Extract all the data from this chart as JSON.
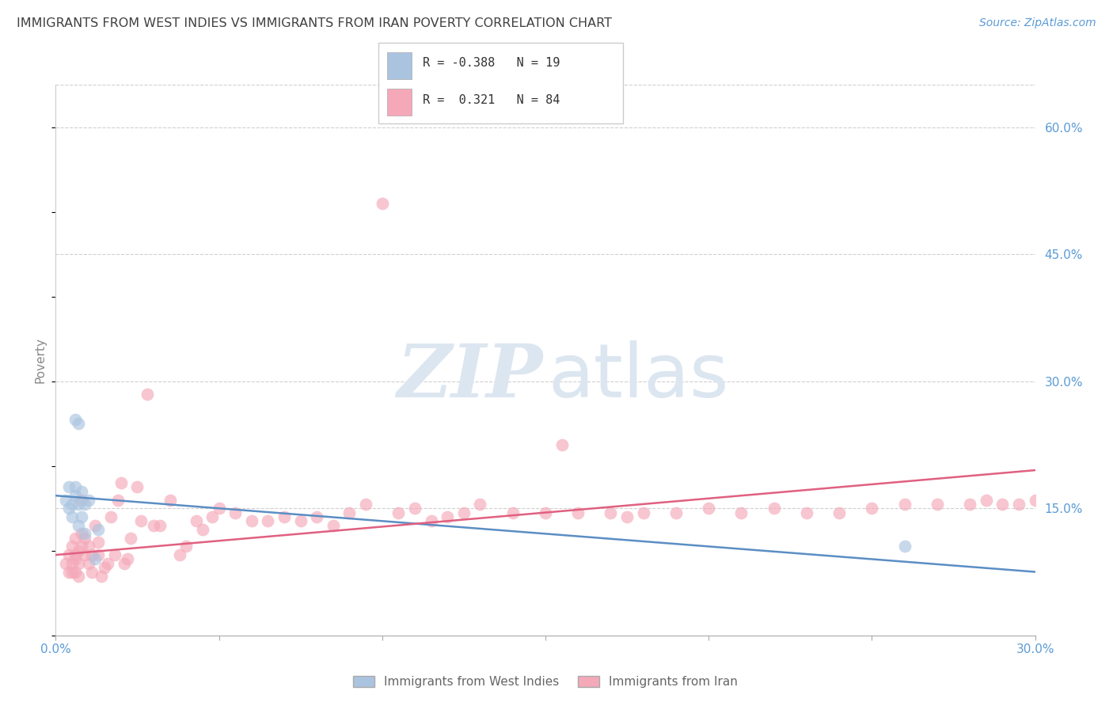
{
  "title": "IMMIGRANTS FROM WEST INDIES VS IMMIGRANTS FROM IRAN POVERTY CORRELATION CHART",
  "source": "Source: ZipAtlas.com",
  "ylabel": "Poverty",
  "xlim": [
    0.0,
    0.3
  ],
  "ylim": [
    0.0,
    0.65
  ],
  "x_ticks": [
    0.0,
    0.05,
    0.1,
    0.15,
    0.2,
    0.25,
    0.3
  ],
  "x_tick_labels": [
    "0.0%",
    "",
    "",
    "",
    "",
    "",
    "30.0%"
  ],
  "y_ticks_right": [
    0.15,
    0.3,
    0.45,
    0.6
  ],
  "y_tick_labels_right": [
    "15.0%",
    "30.0%",
    "45.0%",
    "60.0%"
  ],
  "grid_color": "#d0d0d0",
  "background_color": "#ffffff",
  "blue_color": "#aac4e0",
  "pink_color": "#f4a8b8",
  "blue_line_color": "#5b8ec4",
  "pink_line_color": "#e06080",
  "right_axis_color": "#5b9bd5",
  "title_color": "#404040",
  "ylabel_color": "#888888",
  "legend_R1": "-0.388",
  "legend_N1": "19",
  "legend_R2": "0.321",
  "legend_N2": "84",
  "west_indies_x": [
    0.003,
    0.004,
    0.004,
    0.005,
    0.005,
    0.006,
    0.006,
    0.006,
    0.007,
    0.007,
    0.007,
    0.008,
    0.008,
    0.009,
    0.009,
    0.01,
    0.012,
    0.013,
    0.26
  ],
  "west_indies_y": [
    0.16,
    0.15,
    0.175,
    0.155,
    0.14,
    0.165,
    0.175,
    0.255,
    0.25,
    0.13,
    0.155,
    0.17,
    0.14,
    0.155,
    0.12,
    0.16,
    0.09,
    0.125,
    0.105
  ],
  "iran_x": [
    0.003,
    0.004,
    0.004,
    0.005,
    0.005,
    0.005,
    0.006,
    0.006,
    0.006,
    0.006,
    0.007,
    0.007,
    0.007,
    0.008,
    0.008,
    0.008,
    0.009,
    0.009,
    0.01,
    0.01,
    0.011,
    0.011,
    0.012,
    0.013,
    0.013,
    0.014,
    0.015,
    0.016,
    0.017,
    0.018,
    0.019,
    0.02,
    0.021,
    0.022,
    0.023,
    0.025,
    0.026,
    0.028,
    0.03,
    0.032,
    0.035,
    0.038,
    0.04,
    0.043,
    0.045,
    0.048,
    0.05,
    0.055,
    0.06,
    0.065,
    0.07,
    0.075,
    0.08,
    0.085,
    0.09,
    0.095,
    0.1,
    0.105,
    0.11,
    0.115,
    0.12,
    0.125,
    0.13,
    0.14,
    0.15,
    0.155,
    0.16,
    0.17,
    0.175,
    0.18,
    0.19,
    0.2,
    0.21,
    0.22,
    0.23,
    0.24,
    0.25,
    0.26,
    0.27,
    0.28,
    0.285,
    0.29,
    0.295,
    0.3
  ],
  "iran_y": [
    0.085,
    0.095,
    0.075,
    0.105,
    0.085,
    0.075,
    0.115,
    0.095,
    0.09,
    0.075,
    0.085,
    0.1,
    0.07,
    0.12,
    0.16,
    0.105,
    0.095,
    0.115,
    0.105,
    0.085,
    0.095,
    0.075,
    0.13,
    0.11,
    0.095,
    0.07,
    0.08,
    0.085,
    0.14,
    0.095,
    0.16,
    0.18,
    0.085,
    0.09,
    0.115,
    0.175,
    0.135,
    0.285,
    0.13,
    0.13,
    0.16,
    0.095,
    0.105,
    0.135,
    0.125,
    0.14,
    0.15,
    0.145,
    0.135,
    0.135,
    0.14,
    0.135,
    0.14,
    0.13,
    0.145,
    0.155,
    0.51,
    0.145,
    0.15,
    0.135,
    0.14,
    0.145,
    0.155,
    0.145,
    0.145,
    0.225,
    0.145,
    0.145,
    0.14,
    0.145,
    0.145,
    0.15,
    0.145,
    0.15,
    0.145,
    0.145,
    0.15,
    0.155,
    0.155,
    0.155,
    0.16,
    0.155,
    0.155,
    0.16
  ],
  "blue_trend_x": [
    0.0,
    0.3
  ],
  "blue_trend_y": [
    0.165,
    0.075
  ],
  "pink_trend_x": [
    0.0,
    0.3
  ],
  "pink_trend_y": [
    0.095,
    0.195
  ]
}
